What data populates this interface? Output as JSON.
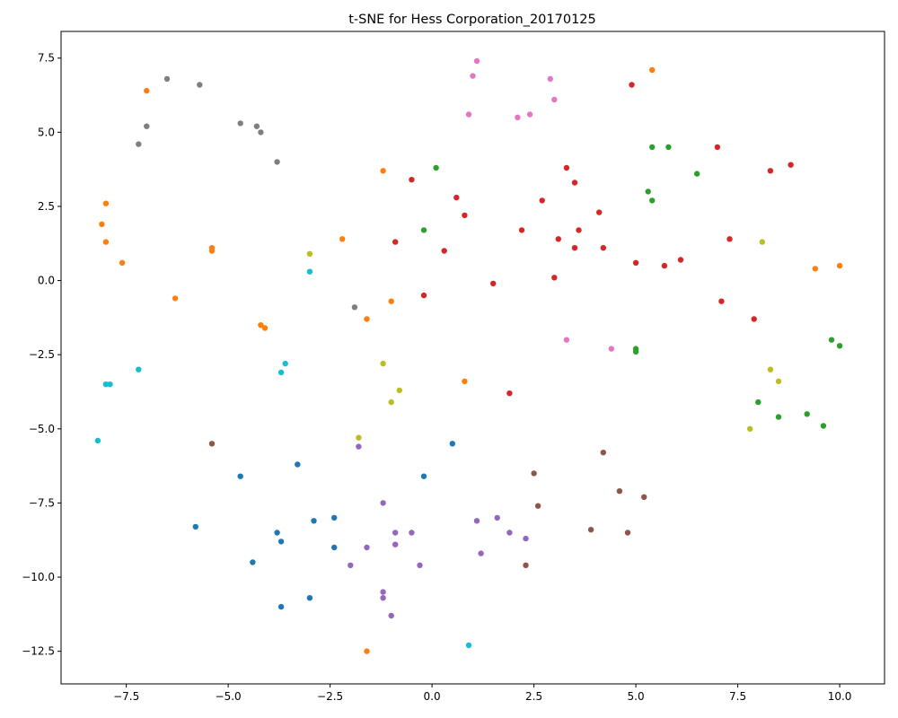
{
  "chart_data": {
    "type": "scatter",
    "title": "t-SNE for Hess Corporation_20170125",
    "xlabel": "",
    "ylabel": "",
    "xlim": [
      -9.1,
      11.1
    ],
    "ylim": [
      -13.6,
      8.4
    ],
    "xticks": [
      -7.5,
      -5.0,
      -2.5,
      0.0,
      2.5,
      5.0,
      7.5,
      10.0
    ],
    "xtick_labels": [
      "−7.5",
      "−5.0",
      "−2.5",
      "0.0",
      "2.5",
      "5.0",
      "7.5",
      "10.0"
    ],
    "yticks": [
      7.5,
      5.0,
      2.5,
      0.0,
      -2.5,
      -5.0,
      -7.5,
      -10.0,
      -12.5
    ],
    "ytick_labels": [
      "7.5",
      "5.0",
      "2.5",
      "0.0",
      "−2.5",
      "−5.0",
      "−7.5",
      "−10.0",
      "−12.5"
    ],
    "grid": false,
    "legend": "none",
    "series": [
      {
        "color": "#1f77b4",
        "points": [
          [
            -3.3,
            -6.2
          ],
          [
            -4.7,
            -6.6
          ],
          [
            -5.8,
            -8.3
          ],
          [
            -2.9,
            -8.1
          ],
          [
            -2.4,
            -8.0
          ],
          [
            -3.8,
            -8.5
          ],
          [
            -3.7,
            -8.8
          ],
          [
            -2.4,
            -9.0
          ],
          [
            -4.4,
            -9.5
          ],
          [
            -3.0,
            -10.7
          ],
          [
            -3.7,
            -11.0
          ],
          [
            0.5,
            -5.5
          ],
          [
            -0.2,
            -6.6
          ]
        ]
      },
      {
        "color": "#ff7f0e",
        "points": [
          [
            -7.0,
            6.4
          ],
          [
            5.4,
            7.1
          ],
          [
            -8.0,
            2.6
          ],
          [
            -8.1,
            1.9
          ],
          [
            -8.0,
            1.3
          ],
          [
            -7.6,
            0.6
          ],
          [
            -5.4,
            1.1
          ],
          [
            -5.4,
            1.0
          ],
          [
            -6.3,
            -0.6
          ],
          [
            -1.2,
            3.7
          ],
          [
            -2.2,
            1.4
          ],
          [
            -4.2,
            -1.5
          ],
          [
            -4.1,
            -1.6
          ],
          [
            -1.6,
            -1.3
          ],
          [
            -1.0,
            -0.7
          ],
          [
            0.8,
            -3.4
          ],
          [
            9.4,
            0.4
          ],
          [
            10.0,
            0.5
          ],
          [
            -1.6,
            -12.5
          ]
        ]
      },
      {
        "color": "#2ca02c",
        "points": [
          [
            0.1,
            3.8
          ],
          [
            5.4,
            4.5
          ],
          [
            5.8,
            4.5
          ],
          [
            6.5,
            3.6
          ],
          [
            5.3,
            3.0
          ],
          [
            5.4,
            2.7
          ],
          [
            -0.2,
            1.7
          ],
          [
            5.0,
            -2.4
          ],
          [
            5.0,
            -2.3
          ],
          [
            9.8,
            -2.0
          ],
          [
            10.0,
            -2.2
          ],
          [
            8.0,
            -4.1
          ],
          [
            8.5,
            -4.6
          ],
          [
            9.2,
            -4.5
          ],
          [
            9.6,
            -4.9
          ]
        ]
      },
      {
        "color": "#d62728",
        "points": [
          [
            4.9,
            6.6
          ],
          [
            7.0,
            4.5
          ],
          [
            8.3,
            3.7
          ],
          [
            8.8,
            3.9
          ],
          [
            3.3,
            3.8
          ],
          [
            3.5,
            3.3
          ],
          [
            -0.5,
            3.4
          ],
          [
            0.6,
            2.8
          ],
          [
            0.8,
            2.2
          ],
          [
            2.7,
            2.7
          ],
          [
            4.1,
            2.3
          ],
          [
            2.2,
            1.7
          ],
          [
            3.1,
            1.4
          ],
          [
            3.6,
            1.7
          ],
          [
            3.5,
            1.1
          ],
          [
            4.2,
            1.1
          ],
          [
            7.3,
            1.4
          ],
          [
            -0.9,
            1.3
          ],
          [
            0.3,
            1.0
          ],
          [
            5.0,
            0.6
          ],
          [
            5.7,
            0.5
          ],
          [
            6.1,
            0.7
          ],
          [
            3.0,
            0.1
          ],
          [
            1.5,
            -0.1
          ],
          [
            -0.2,
            -0.5
          ],
          [
            7.1,
            -0.7
          ],
          [
            7.9,
            -1.3
          ],
          [
            1.9,
            -3.8
          ]
        ]
      },
      {
        "color": "#9467bd",
        "points": [
          [
            -1.8,
            -5.6
          ],
          [
            -1.2,
            -7.5
          ],
          [
            1.1,
            -8.1
          ],
          [
            1.6,
            -8.0
          ],
          [
            1.9,
            -8.5
          ],
          [
            2.3,
            -8.7
          ],
          [
            -0.5,
            -8.5
          ],
          [
            -0.9,
            -8.5
          ],
          [
            -0.9,
            -8.9
          ],
          [
            -1.6,
            -9.0
          ],
          [
            1.2,
            -9.2
          ],
          [
            -2.0,
            -9.6
          ],
          [
            -0.3,
            -9.6
          ],
          [
            -1.2,
            -10.5
          ],
          [
            -1.2,
            -10.7
          ],
          [
            -1.0,
            -11.3
          ]
        ]
      },
      {
        "color": "#8c564b",
        "points": [
          [
            -5.4,
            -5.5
          ],
          [
            2.5,
            -6.5
          ],
          [
            4.2,
            -5.8
          ],
          [
            4.6,
            -7.1
          ],
          [
            5.2,
            -7.3
          ],
          [
            2.6,
            -7.6
          ],
          [
            3.9,
            -8.4
          ],
          [
            4.8,
            -8.5
          ],
          [
            2.3,
            -9.6
          ]
        ]
      },
      {
        "color": "#e377c2",
        "points": [
          [
            1.1,
            7.4
          ],
          [
            1.0,
            6.9
          ],
          [
            2.9,
            6.8
          ],
          [
            3.0,
            6.1
          ],
          [
            0.9,
            5.6
          ],
          [
            2.1,
            5.5
          ],
          [
            2.4,
            5.6
          ],
          [
            3.3,
            -2.0
          ],
          [
            4.4,
            -2.3
          ]
        ]
      },
      {
        "color": "#7f7f7f",
        "points": [
          [
            -6.5,
            6.8
          ],
          [
            -5.7,
            6.6
          ],
          [
            -7.0,
            5.2
          ],
          [
            -7.2,
            4.6
          ],
          [
            -4.7,
            5.3
          ],
          [
            -4.3,
            5.2
          ],
          [
            -4.2,
            5.0
          ],
          [
            -3.8,
            4.0
          ],
          [
            -1.9,
            -0.9
          ]
        ]
      },
      {
        "color": "#bcbd22",
        "points": [
          [
            -3.0,
            0.9
          ],
          [
            8.1,
            1.3
          ],
          [
            8.3,
            -3.0
          ],
          [
            8.5,
            -3.4
          ],
          [
            7.8,
            -5.0
          ],
          [
            -1.2,
            -2.8
          ],
          [
            -0.8,
            -3.7
          ],
          [
            -1.0,
            -4.1
          ],
          [
            -1.8,
            -5.3
          ]
        ]
      },
      {
        "color": "#17becf",
        "points": [
          [
            -3.0,
            0.3
          ],
          [
            -7.2,
            -3.0
          ],
          [
            -8.0,
            -3.5
          ],
          [
            -7.9,
            -3.5
          ],
          [
            -3.6,
            -2.8
          ],
          [
            -3.7,
            -3.1
          ],
          [
            -8.2,
            -5.4
          ],
          [
            0.9,
            -12.3
          ]
        ]
      }
    ]
  }
}
